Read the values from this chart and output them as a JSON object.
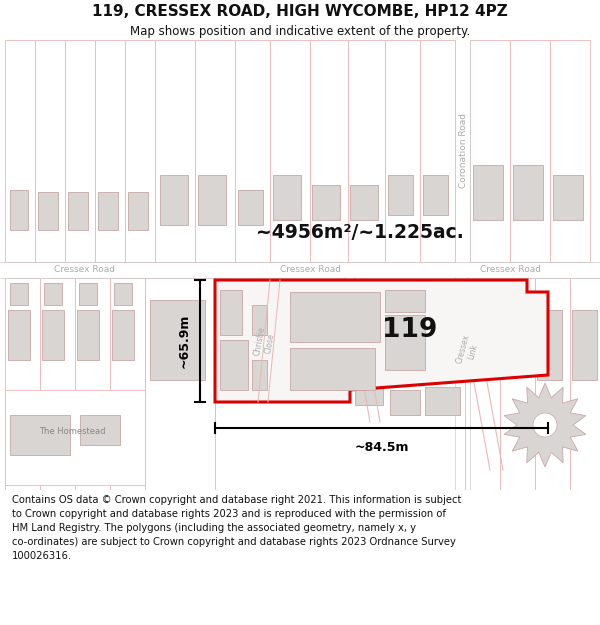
{
  "title": "119, CRESSEX ROAD, HIGH WYCOMBE, HP12 4PZ",
  "subtitle": "Map shows position and indicative extent of the property.",
  "footer_line1": "Contains OS data © Crown copyright and database right 2021. This information is subject",
  "footer_line2": "to Crown copyright and database rights 2023 and is reproduced with the permission of",
  "footer_line3": "HM Land Registry. The polygons (including the associated geometry, namely x, y",
  "footer_line4": "co-ordinates) are subject to Crown copyright and database rights 2023 Ordnance Survey",
  "footer_line5": "100026316.",
  "area_label": "~4956m²/~1.225ac.",
  "width_label": "~84.5m",
  "height_label": "~65.9m",
  "number_label": "119",
  "map_bg": "#ffffff",
  "building_fill": "#d8d5d2",
  "building_edge": "#c8a8a8",
  "road_line": "#e8b8b8",
  "highlight_color": "#dd0000",
  "text_dark": "#111111",
  "road_label_color": "#aaaaaa",
  "green_color": "#ccddc8"
}
